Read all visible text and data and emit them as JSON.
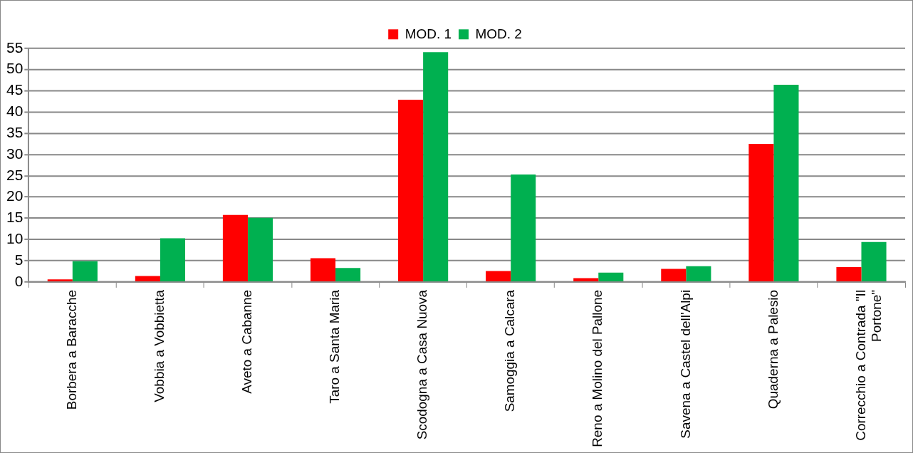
{
  "chart_data": {
    "type": "bar",
    "categories": [
      "Borbera a Baracche",
      "Vobbia a Vobbietta",
      "Aveto a Cabanne",
      "Taro a Santa Maria",
      "Scodogna a Casa Nuova",
      "Samoggia a Calcara",
      "Reno a Molino del Pallone",
      "Savena a Castel dell'Alpi",
      "Quaderna a Palesio",
      "Correcchio a Contrada \"Il Portone\""
    ],
    "series": [
      {
        "name": "MOD. 1",
        "color": "#ff0000",
        "values": [
          0.6,
          1.4,
          15.8,
          5.6,
          42.9,
          2.6,
          0.9,
          3.1,
          32.5,
          3.5
        ]
      },
      {
        "name": "MOD. 2",
        "color": "#00b050",
        "values": [
          4.9,
          10.3,
          15.1,
          3.3,
          54.1,
          25.3,
          2.2,
          3.7,
          46.4,
          9.4
        ]
      }
    ],
    "ylim": [
      0,
      55
    ],
    "yticks": [
      0,
      5,
      10,
      15,
      20,
      25,
      30,
      35,
      40,
      45,
      50,
      55
    ],
    "grid": "y",
    "legend": "top"
  }
}
